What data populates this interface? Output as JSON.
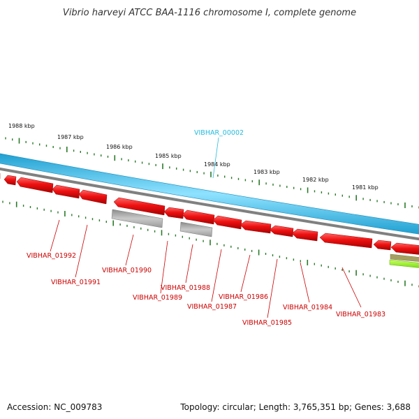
{
  "title": "Vibrio harveyi ATCC BAA-1116 chromosome I, complete genome",
  "footer": {
    "accession": "Accession: NC_009783",
    "topology": "Topology: circular; Length: 3,765,351 bp; Genes: 3,688"
  },
  "colors": {
    "forward_strand": "#3bc7f0",
    "backbone": "#7a7a7a",
    "gene": "#ee1111",
    "pseudo_gene": "#b8b8b8",
    "rna": "#99ee33",
    "label_reverse": "#cc0000",
    "label_forward": "#22bbdd",
    "tick": "#2a7a2a"
  },
  "scale_labels": [
    "1988 kbp",
    "1987 kbp",
    "1986 kbp",
    "1985 kbp",
    "1984 kbp",
    "1983 kbp",
    "1982 kbp",
    "1981 kbp"
  ],
  "gene_labels": {
    "forward": [
      "VIBHAR_00002"
    ],
    "reverse": [
      "VIBHAR_01992",
      "VIBHAR_01991",
      "VIBHAR_01990",
      "VIBHAR_01989",
      "VIBHAR_01988",
      "VIBHAR_01987",
      "VIBHAR_01986",
      "VIBHAR_01985",
      "VIBHAR_01984",
      "VIBHAR_01983"
    ]
  }
}
